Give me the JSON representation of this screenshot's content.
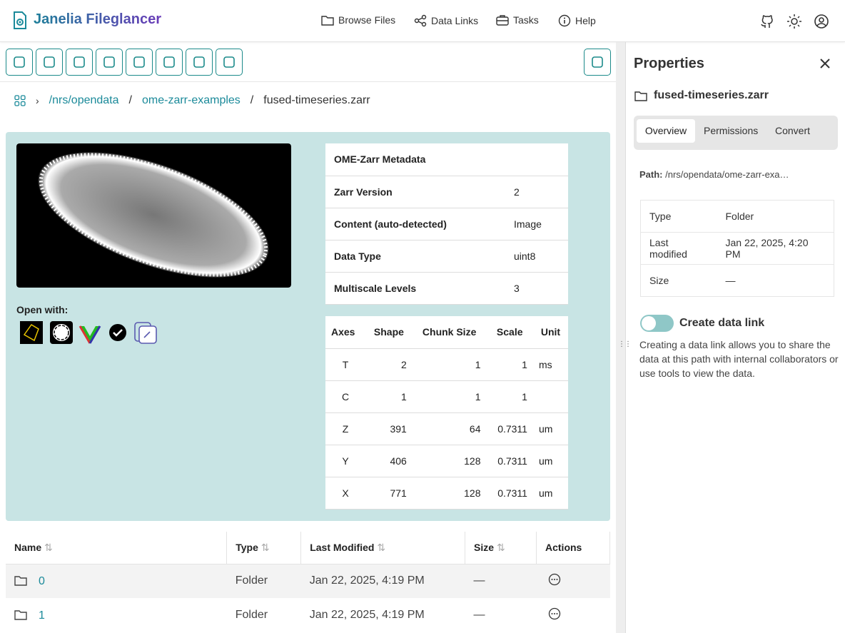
{
  "header": {
    "title": "Janelia Fileglancer",
    "nav": [
      "Browse Files",
      "Data Links",
      "Tasks",
      "Help"
    ]
  },
  "breadcrumb": [
    "/nrs/opendata",
    "ome-zarr-examples",
    "fused-timeseries.zarr"
  ],
  "open_with": "Open with:",
  "metadata_table": {
    "title": "OME-Zarr Metadata",
    "rows": [
      [
        "Zarr Version",
        "2"
      ],
      [
        "Content (auto-detected)",
        "Image"
      ],
      [
        "Data Type",
        "uint8"
      ],
      [
        "Multiscale Levels",
        "3"
      ]
    ]
  },
  "axes_table": {
    "headers": [
      "Axes",
      "Shape",
      "Chunk Size",
      "Scale",
      "Unit"
    ],
    "rows": [
      [
        "T",
        2,
        1,
        1,
        "ms"
      ],
      [
        "C",
        1,
        1,
        1,
        null
      ],
      [
        "Z",
        391,
        64,
        0.7311,
        "um"
      ],
      [
        "Y",
        406,
        128,
        0.7311,
        "um"
      ],
      [
        "X",
        771,
        128,
        0.7311,
        "um"
      ]
    ]
  },
  "file_table": {
    "headers": [
      "Name",
      "Type",
      "Last Modified",
      "Size",
      "Actions"
    ],
    "rows": [
      [
        "0",
        "Folder",
        "Jan 22, 2025, 4:19 PM",
        "—"
      ],
      [
        "1",
        "Folder",
        "Jan 22, 2025, 4:19 PM",
        "—"
      ]
    ]
  },
  "properties": {
    "title": "Properties",
    "name": "fused-timeseries.zarr",
    "tabs": [
      "Overview",
      "Permissions",
      "Convert"
    ],
    "path_label": "Path:",
    "path": "/nrs/opendata/ome-zarr-exa…",
    "rows": [
      [
        "Type",
        "Folder"
      ],
      [
        "Last modified",
        "Jan 22, 2025, 4:20 PM"
      ],
      [
        "Size",
        "—"
      ]
    ],
    "data_link_title": "Create data link",
    "data_link_text": "Creating a data link allows you to share the data at this path with internal collaborators or use tools to view the data."
  }
}
